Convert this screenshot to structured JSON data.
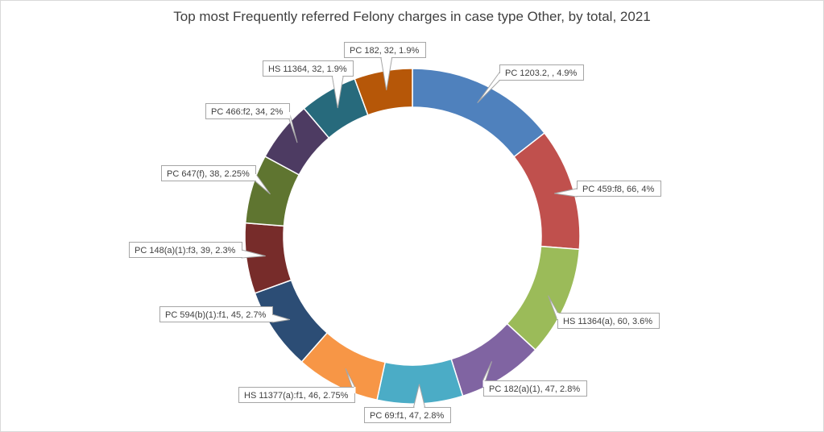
{
  "chart_data": {
    "type": "pie",
    "title": "Top most Frequently referred Felony charges in case type Other, by total, 2021",
    "slices": [
      {
        "label": "PC 1203.2, , 4.9%",
        "value": 4.9,
        "color": "#4f81bd"
      },
      {
        "label": "PC 459:f8, 66, 4%",
        "value": 4.0,
        "color": "#c0504d"
      },
      {
        "label": "HS 11364(a), 60, 3.6%",
        "value": 3.6,
        "color": "#9bbb59"
      },
      {
        "label": "PC 182(a)(1), 47, 2.8%",
        "value": 2.8,
        "color": "#8064a2"
      },
      {
        "label": "PC 69:f1, 47, 2.8%",
        "value": 2.8,
        "color": "#4bacc6"
      },
      {
        "label": "HS 11377(a):f1, 46, 2.75%",
        "value": 2.75,
        "color": "#f79646"
      },
      {
        "label": "PC 594(b)(1):f1, 45, 2.7%",
        "value": 2.7,
        "color": "#2c4d75"
      },
      {
        "label": "PC 148(a)(1):f3, 39, 2.3%",
        "value": 2.3,
        "color": "#772c2a"
      },
      {
        "label": "PC 647(f), 38, 2.25%",
        "value": 2.25,
        "color": "#5f7530"
      },
      {
        "label": "PC 466:f2, 34, 2%",
        "value": 2.0,
        "color": "#4d3b62"
      },
      {
        "label": "HS 11364, 32, 1.9%",
        "value": 1.9,
        "color": "#276a7c"
      },
      {
        "label": "PC 182, 32, 1.9%",
        "value": 1.9,
        "color": "#b65708"
      }
    ],
    "legend": "none",
    "style": "doughnut"
  }
}
